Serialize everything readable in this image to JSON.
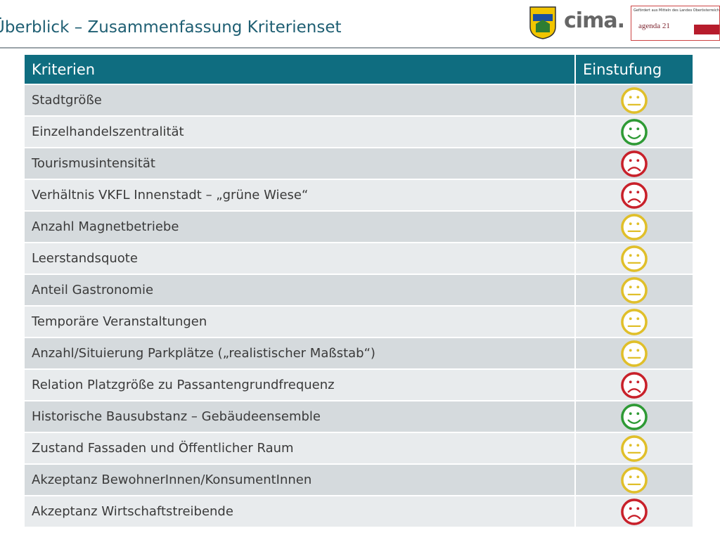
{
  "header": {
    "title": "Überblick – Zusammenfassung Kriterienset",
    "logo_text": "cima.",
    "funding_note": "Gefördert aus Mitteln des Landes Oberösterreich",
    "agenda": "agenda 21"
  },
  "table": {
    "columns": [
      "Kriterien",
      "Einstufung"
    ],
    "rows": [
      {
        "criterion": "Stadtgröße",
        "rating": "neutral"
      },
      {
        "criterion": "Einzelhandelszentralität",
        "rating": "positive"
      },
      {
        "criterion": "Tourismusintensität",
        "rating": "negative"
      },
      {
        "criterion": "Verhältnis VKFL Innenstadt –  „grüne Wiese“",
        "rating": "negative"
      },
      {
        "criterion": "Anzahl Magnetbetriebe",
        "rating": "neutral"
      },
      {
        "criterion": "Leerstandsquote",
        "rating": "neutral"
      },
      {
        "criterion": "Anteil Gastronomie",
        "rating": "neutral"
      },
      {
        "criterion": "Temporäre Veranstaltungen",
        "rating": "neutral"
      },
      {
        "criterion": "Anzahl/Situierung Parkplätze („realistischer Maßstab“)",
        "rating": "neutral"
      },
      {
        "criterion": "Relation Platzgröße zu Passantengrundfrequenz",
        "rating": "negative"
      },
      {
        "criterion": "Historische Bausubstanz –  Gebäudeensemble",
        "rating": "positive"
      },
      {
        "criterion": "Zustand Fassaden und Öffentlicher Raum",
        "rating": "neutral"
      },
      {
        "criterion": "Akzeptanz BewohnerInnen/KonsumentInnen",
        "rating": "neutral"
      },
      {
        "criterion": "Akzeptanz Wirtschaftstreibende",
        "rating": "negative"
      }
    ]
  }
}
